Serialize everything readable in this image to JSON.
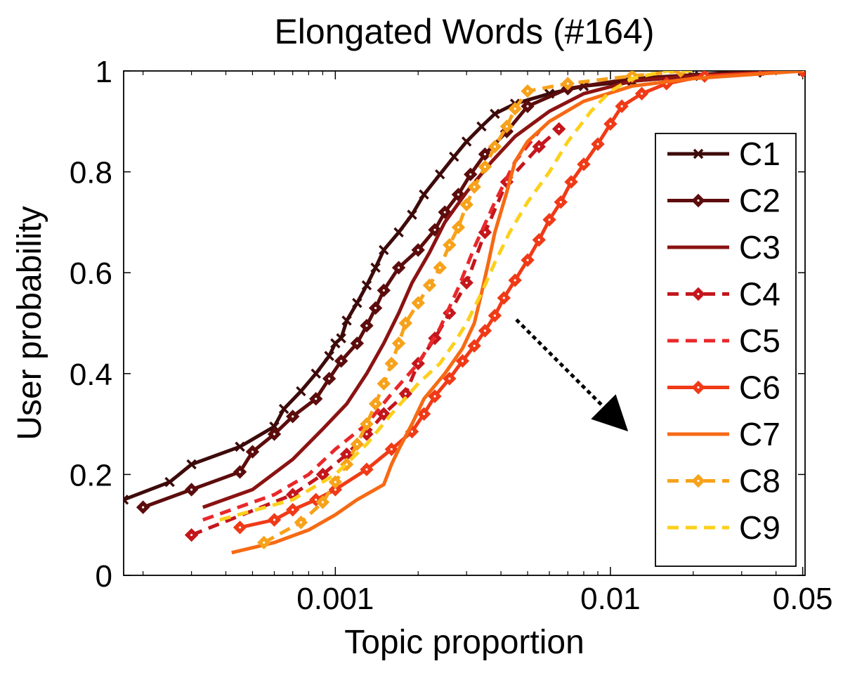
{
  "chart_data": {
    "type": "line",
    "title": "Elongated Words (#164)",
    "xlabel": "Topic proportion",
    "ylabel": "User probability",
    "xscale": "log",
    "xlim": [
      0.00017,
      0.051
    ],
    "ylim": [
      0,
      1
    ],
    "xticks": [
      {
        "value": 0.001,
        "label": "0.001"
      },
      {
        "value": 0.01,
        "label": "0.01"
      },
      {
        "value": 0.05,
        "label": "0.05"
      }
    ],
    "yticks": [
      {
        "value": 0,
        "label": "0"
      },
      {
        "value": 0.2,
        "label": "0.2"
      },
      {
        "value": 0.4,
        "label": "0.4"
      },
      {
        "value": 0.6,
        "label": "0.6"
      },
      {
        "value": 0.8,
        "label": "0.8"
      },
      {
        "value": 1,
        "label": "1"
      }
    ],
    "legend_position": "right",
    "annotation": "dotted arrow pointing down-right (C1 to C9 shift)",
    "series": [
      {
        "name": "C1",
        "color": "#3d0a0a",
        "dash": "solid",
        "marker": "x",
        "x": [
          0.00017,
          0.00025,
          0.0003,
          0.00045,
          0.0006,
          0.00065,
          0.00075,
          0.00085,
          0.00095,
          0.001,
          0.00105,
          0.0011,
          0.0012,
          0.0013,
          0.0014,
          0.0015,
          0.0017,
          0.0019,
          0.0021,
          0.0024,
          0.0027,
          0.003,
          0.0034,
          0.0038,
          0.0045,
          0.006,
          0.008,
          0.012,
          0.02,
          0.035,
          0.05
        ],
        "y": [
          0.15,
          0.185,
          0.22,
          0.255,
          0.295,
          0.33,
          0.365,
          0.4,
          0.435,
          0.46,
          0.47,
          0.505,
          0.54,
          0.575,
          0.61,
          0.645,
          0.68,
          0.715,
          0.755,
          0.795,
          0.83,
          0.86,
          0.89,
          0.915,
          0.935,
          0.955,
          0.97,
          0.98,
          0.99,
          1.0,
          1.0
        ]
      },
      {
        "name": "C2",
        "color": "#5c0c0c",
        "dash": "solid",
        "marker": "diamond",
        "x": [
          0.0002,
          0.0003,
          0.00045,
          0.0005,
          0.0006,
          0.0007,
          0.00085,
          0.00095,
          0.00105,
          0.0012,
          0.0013,
          0.0014,
          0.0015,
          0.0017,
          0.002,
          0.0023,
          0.0025,
          0.0028,
          0.0031,
          0.0035,
          0.0042,
          0.005,
          0.007,
          0.012,
          0.035,
          0.05
        ],
        "y": [
          0.135,
          0.17,
          0.205,
          0.245,
          0.28,
          0.315,
          0.35,
          0.39,
          0.425,
          0.46,
          0.495,
          0.53,
          0.565,
          0.61,
          0.645,
          0.685,
          0.72,
          0.755,
          0.795,
          0.835,
          0.88,
          0.93,
          0.965,
          0.985,
          1.0,
          1.0
        ]
      },
      {
        "name": "C3",
        "color": "#8b1313",
        "dash": "solid",
        "marker": "none",
        "x": [
          0.00033,
          0.0005,
          0.0007,
          0.0009,
          0.0011,
          0.0013,
          0.0015,
          0.0017,
          0.0019,
          0.0022,
          0.0025,
          0.003,
          0.0037,
          0.0045,
          0.006,
          0.008,
          0.012,
          0.02,
          0.05
        ],
        "y": [
          0.135,
          0.17,
          0.23,
          0.29,
          0.34,
          0.4,
          0.46,
          0.52,
          0.58,
          0.64,
          0.7,
          0.76,
          0.82,
          0.87,
          0.92,
          0.955,
          0.98,
          0.99,
          1.0
        ]
      },
      {
        "name": "C4",
        "color": "#c4161c",
        "dash": "dashed",
        "marker": "diamond",
        "x": [
          0.0003,
          0.0007,
          0.0009,
          0.0011,
          0.0013,
          0.0015,
          0.0018,
          0.002,
          0.0023,
          0.0026,
          0.003,
          0.0035,
          0.0042,
          0.0055,
          0.0065
        ],
        "y": [
          0.08,
          0.16,
          0.2,
          0.24,
          0.28,
          0.32,
          0.36,
          0.42,
          0.47,
          0.52,
          0.58,
          0.68,
          0.78,
          0.85,
          0.885
        ]
      },
      {
        "name": "C5",
        "color": "#e8282b",
        "dash": "dashed",
        "marker": "none",
        "x": [
          0.00033,
          0.0006,
          0.0008,
          0.001,
          0.0013,
          0.0016,
          0.002,
          0.0024,
          0.0028,
          0.0032,
          0.0038,
          0.0045,
          0.0055
        ],
        "y": [
          0.11,
          0.16,
          0.2,
          0.25,
          0.3,
          0.36,
          0.42,
          0.49,
          0.57,
          0.65,
          0.74,
          0.82,
          0.88
        ]
      },
      {
        "name": "C6",
        "color": "#f03a17",
        "dash": "solid",
        "marker": "diamond",
        "x": [
          0.00045,
          0.0006,
          0.0007,
          0.00085,
          0.001,
          0.0013,
          0.0016,
          0.0019,
          0.0021,
          0.0023,
          0.0026,
          0.0029,
          0.0032,
          0.0035,
          0.0038,
          0.0041,
          0.0045,
          0.005,
          0.0055,
          0.006,
          0.0066,
          0.0072,
          0.008,
          0.009,
          0.01,
          0.011,
          0.013,
          0.016,
          0.022,
          0.05
        ],
        "y": [
          0.095,
          0.11,
          0.13,
          0.15,
          0.17,
          0.21,
          0.25,
          0.285,
          0.32,
          0.355,
          0.39,
          0.425,
          0.455,
          0.485,
          0.515,
          0.55,
          0.585,
          0.625,
          0.665,
          0.705,
          0.74,
          0.78,
          0.815,
          0.855,
          0.895,
          0.93,
          0.955,
          0.975,
          0.99,
          1.0
        ]
      },
      {
        "name": "C7",
        "color": "#f66a14",
        "dash": "solid",
        "marker": "none",
        "x": [
          0.00042,
          0.0006,
          0.0008,
          0.001,
          0.0012,
          0.0015,
          0.0016,
          0.0017,
          0.0019,
          0.0021,
          0.0025,
          0.0029,
          0.0032,
          0.0034,
          0.0036,
          0.0038,
          0.0042,
          0.0045,
          0.005,
          0.006,
          0.008,
          0.012,
          0.02,
          0.05
        ],
        "y": [
          0.045,
          0.065,
          0.09,
          0.12,
          0.15,
          0.18,
          0.22,
          0.25,
          0.3,
          0.35,
          0.4,
          0.45,
          0.5,
          0.56,
          0.62,
          0.68,
          0.76,
          0.82,
          0.86,
          0.9,
          0.94,
          0.97,
          0.985,
          1.0
        ]
      },
      {
        "name": "C8",
        "color": "#f7a21b",
        "dash": "dashed",
        "marker": "diamond",
        "x": [
          0.00055,
          0.00075,
          0.0009,
          0.001,
          0.0011,
          0.0012,
          0.0013,
          0.0014,
          0.0015,
          0.0016,
          0.0017,
          0.0018,
          0.002,
          0.0022,
          0.0024,
          0.0026,
          0.0028,
          0.003,
          0.0032,
          0.0035,
          0.0038,
          0.0042,
          0.0045,
          0.005,
          0.007,
          0.012,
          0.018
        ],
        "y": [
          0.065,
          0.105,
          0.145,
          0.185,
          0.22,
          0.26,
          0.3,
          0.34,
          0.38,
          0.42,
          0.46,
          0.5,
          0.54,
          0.575,
          0.61,
          0.655,
          0.69,
          0.735,
          0.77,
          0.81,
          0.85,
          0.89,
          0.925,
          0.96,
          0.975,
          0.99,
          1.0
        ]
      },
      {
        "name": "C9",
        "color": "#fcd01d",
        "dash": "dashed",
        "marker": "none",
        "x": [
          0.00038,
          0.0007,
          0.001,
          0.0013,
          0.0016,
          0.002,
          0.0024,
          0.0027,
          0.003,
          0.0034,
          0.0038,
          0.0043,
          0.005,
          0.006,
          0.007,
          0.0085,
          0.01,
          0.012,
          0.016,
          0.02
        ],
        "y": [
          0.11,
          0.15,
          0.2,
          0.26,
          0.32,
          0.38,
          0.42,
          0.46,
          0.5,
          0.56,
          0.62,
          0.68,
          0.74,
          0.8,
          0.86,
          0.92,
          0.96,
          0.985,
          1.0,
          1.0
        ]
      }
    ]
  }
}
